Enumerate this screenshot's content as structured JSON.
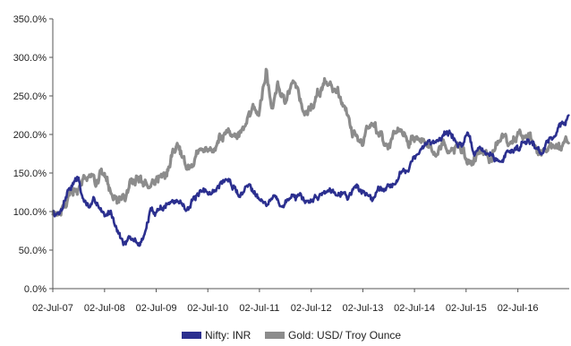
{
  "chart_data": {
    "type": "line",
    "title": "",
    "xlabel": "",
    "ylabel": "",
    "ylim": [
      0,
      350
    ],
    "y_ticks": [
      0,
      50,
      100,
      150,
      200,
      250,
      300,
      350
    ],
    "y_tick_labels": [
      "0.0%",
      "50.0%",
      "100.0%",
      "150.0%",
      "200.0%",
      "250.0%",
      "300.0%",
      "350.0%"
    ],
    "x_ticks": [
      "2007-07-02",
      "2008-07-02",
      "2009-07-02",
      "2010-07-02",
      "2011-07-02",
      "2012-07-02",
      "2013-07-02",
      "2014-07-02",
      "2015-07-02",
      "2016-07-02"
    ],
    "x_tick_labels": [
      "02-Jul-07",
      "02-Jul-08",
      "02-Jul-09",
      "02-Jul-10",
      "02-Jul-11",
      "02-Jul-12",
      "02-Jul-13",
      "02-Jul-14",
      "02-Jul-15",
      "02-Jul-16"
    ],
    "xlim": [
      "2007-07-02",
      "2017-06-30"
    ],
    "grid": false,
    "legend_position": "bottom",
    "series": [
      {
        "name": "Nifty: INR",
        "color": "#2b2f8f",
        "points": [
          [
            "2007-07-02",
            100
          ],
          [
            "2007-08-15",
            97
          ],
          [
            "2007-09-15",
            112
          ],
          [
            "2007-10-20",
            130
          ],
          [
            "2007-11-20",
            138
          ],
          [
            "2007-12-31",
            145
          ],
          [
            "2008-01-25",
            118
          ],
          [
            "2008-03-15",
            105
          ],
          [
            "2008-05-15",
            112
          ],
          [
            "2008-07-02",
            92
          ],
          [
            "2008-08-15",
            100
          ],
          [
            "2008-09-15",
            88
          ],
          [
            "2008-10-25",
            68
          ],
          [
            "2008-11-20",
            60
          ],
          [
            "2009-01-15",
            62
          ],
          [
            "2009-03-09",
            58
          ],
          [
            "2009-04-15",
            72
          ],
          [
            "2009-05-20",
            98
          ],
          [
            "2009-07-02",
            102
          ],
          [
            "2009-09-15",
            110
          ],
          [
            "2009-11-15",
            112
          ],
          [
            "2010-02-10",
            108
          ],
          [
            "2010-04-15",
            118
          ],
          [
            "2010-07-02",
            123
          ],
          [
            "2010-09-15",
            132
          ],
          [
            "2010-11-05",
            143
          ],
          [
            "2011-02-10",
            122
          ],
          [
            "2011-04-15",
            134
          ],
          [
            "2011-07-02",
            124
          ],
          [
            "2011-08-25",
            110
          ],
          [
            "2011-10-25",
            118
          ],
          [
            "2011-12-20",
            106
          ],
          [
            "2012-02-20",
            124
          ],
          [
            "2012-05-20",
            108
          ],
          [
            "2012-07-02",
            114
          ],
          [
            "2012-10-15",
            128
          ],
          [
            "2013-01-20",
            130
          ],
          [
            "2013-03-15",
            122
          ],
          [
            "2013-05-20",
            132
          ],
          [
            "2013-07-02",
            126
          ],
          [
            "2013-08-28",
            117
          ],
          [
            "2013-11-05",
            133
          ],
          [
            "2014-01-20",
            135
          ],
          [
            "2014-03-20",
            147
          ],
          [
            "2014-05-20",
            160
          ],
          [
            "2014-07-02",
            170
          ],
          [
            "2014-09-15",
            183
          ],
          [
            "2014-11-25",
            193
          ],
          [
            "2015-01-29",
            203
          ],
          [
            "2015-03-10",
            200
          ],
          [
            "2015-05-10",
            188
          ],
          [
            "2015-07-20",
            193
          ],
          [
            "2015-08-25",
            176
          ],
          [
            "2015-10-20",
            180
          ],
          [
            "2016-01-10",
            170
          ],
          [
            "2016-02-25",
            162
          ],
          [
            "2016-04-20",
            178
          ],
          [
            "2016-07-02",
            183
          ],
          [
            "2016-09-15",
            198
          ],
          [
            "2016-11-15",
            182
          ],
          [
            "2016-12-26",
            178
          ],
          [
            "2017-02-15",
            195
          ],
          [
            "2017-04-15",
            208
          ],
          [
            "2017-06-30",
            224
          ]
        ]
      },
      {
        "name": "Gold: USD/ Troy Ounce",
        "color": "#8c8c8c",
        "points": [
          [
            "2007-07-02",
            100
          ],
          [
            "2007-09-15",
            108
          ],
          [
            "2007-11-10",
            123
          ],
          [
            "2007-12-31",
            130
          ],
          [
            "2008-03-17",
            153
          ],
          [
            "2008-05-01",
            133
          ],
          [
            "2008-07-02",
            148
          ],
          [
            "2008-08-20",
            125
          ],
          [
            "2008-10-24",
            110
          ],
          [
            "2008-12-31",
            130
          ],
          [
            "2009-02-20",
            148
          ],
          [
            "2009-04-15",
            134
          ],
          [
            "2009-07-02",
            141
          ],
          [
            "2009-09-15",
            150
          ],
          [
            "2009-12-02",
            181
          ],
          [
            "2010-02-05",
            163
          ],
          [
            "2010-05-15",
            183
          ],
          [
            "2010-07-02",
            178
          ],
          [
            "2010-09-15",
            196
          ],
          [
            "2010-11-15",
            204
          ],
          [
            "2011-01-25",
            197
          ],
          [
            "2011-04-25",
            228
          ],
          [
            "2011-07-02",
            229
          ],
          [
            "2011-08-22",
            285
          ],
          [
            "2011-09-26",
            238
          ],
          [
            "2011-11-08",
            268
          ],
          [
            "2011-12-29",
            234
          ],
          [
            "2012-02-28",
            268
          ],
          [
            "2012-05-16",
            228
          ],
          [
            "2012-07-02",
            238
          ],
          [
            "2012-10-04",
            268
          ],
          [
            "2012-12-28",
            248
          ],
          [
            "2013-02-20",
            235
          ],
          [
            "2013-04-15",
            205
          ],
          [
            "2013-06-28",
            186
          ],
          [
            "2013-08-28",
            213
          ],
          [
            "2013-10-15",
            195
          ],
          [
            "2013-12-31",
            181
          ],
          [
            "2014-03-15",
            205
          ],
          [
            "2014-05-28",
            190
          ],
          [
            "2014-07-10",
            198
          ],
          [
            "2014-11-05",
            175
          ],
          [
            "2015-01-22",
            195
          ],
          [
            "2015-03-17",
            179
          ],
          [
            "2015-05-15",
            182
          ],
          [
            "2015-07-24",
            163
          ],
          [
            "2015-10-15",
            177
          ],
          [
            "2015-12-17",
            158
          ],
          [
            "2016-02-11",
            187
          ],
          [
            "2016-04-15",
            186
          ],
          [
            "2016-07-06",
            202
          ],
          [
            "2016-09-15",
            199
          ],
          [
            "2016-11-10",
            190
          ],
          [
            "2016-12-15",
            170
          ],
          [
            "2017-02-25",
            188
          ],
          [
            "2017-04-18",
            194
          ],
          [
            "2017-05-09",
            183
          ],
          [
            "2017-06-06",
            197
          ],
          [
            "2017-06-30",
            190
          ]
        ]
      }
    ]
  }
}
